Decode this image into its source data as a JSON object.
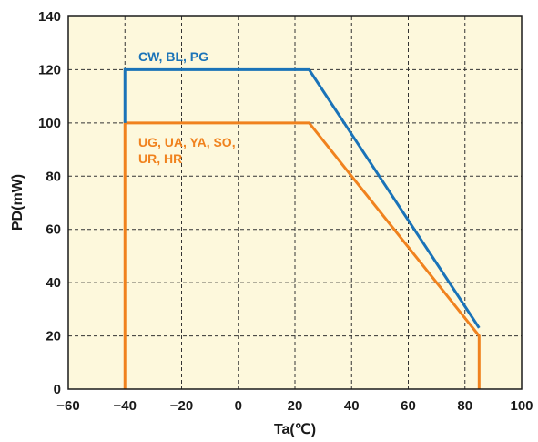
{
  "chart_data": {
    "type": "line",
    "title": "",
    "xlabel": "Ta(℃)",
    "ylabel": "PD(mW)",
    "xlim": [
      -60,
      100
    ],
    "ylim": [
      0,
      140
    ],
    "xticks": [
      -60,
      -40,
      -20,
      0,
      20,
      40,
      60,
      80,
      100
    ],
    "yticks": [
      0,
      20,
      40,
      60,
      80,
      100,
      120,
      140
    ],
    "xtick_labels": [
      "−60",
      "−40",
      "−20",
      "0",
      "20",
      "40",
      "60",
      "80",
      "100"
    ],
    "ytick_labels": [
      "0",
      "20",
      "40",
      "60",
      "80",
      "100",
      "120",
      "140"
    ],
    "grid": true,
    "background_color": "#fdf8dc",
    "series": [
      {
        "name": "CW, BL, PG",
        "color": "#1a73b8",
        "x": [
          -40,
          -40,
          25,
          85
        ],
        "y": [
          100,
          120,
          120,
          23
        ]
      },
      {
        "name": "UG, UA, YA, SO,\nUR, HR",
        "name_lines": [
          "UG, UA, YA, SO,",
          "UR, HR"
        ],
        "color": "#f0821e",
        "x": [
          -40,
          -40,
          25,
          85,
          85
        ],
        "y": [
          0,
          100,
          100,
          20,
          0
        ]
      }
    ]
  }
}
